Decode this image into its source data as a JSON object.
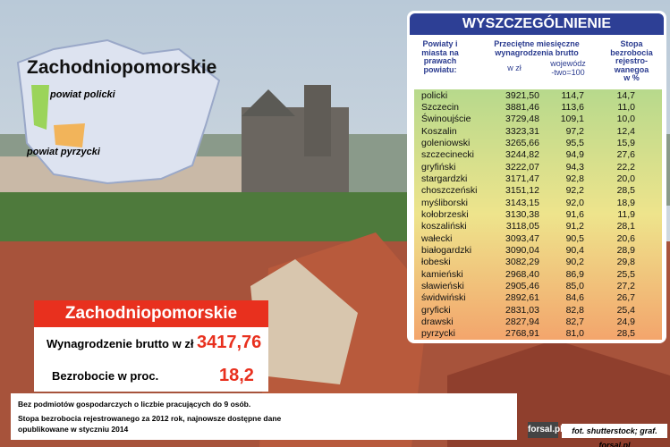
{
  "map": {
    "title": "Zachodniopomorskie",
    "labels": [
      "powiat policki",
      "powiat pyrzycki"
    ]
  },
  "summary": {
    "title": "Zachodniopomorskie",
    "rows": [
      {
        "label": "Wynagrodzenie brutto w zł",
        "value": "3417,76"
      },
      {
        "label": "Bezrobocie w proc.",
        "value": "18,2"
      }
    ],
    "notes": [
      "Bez podmiotów gospodarczych o liczbie pracujących do 9 osób.",
      "Stopa bezrobocia rejestrowanego za 2012 rok, najnowsze dostępne dane opublikowane w styczniu 2014"
    ]
  },
  "table": {
    "title": "WYSZCZEGÓLNIENIE",
    "headers": {
      "region": [
        "Powiaty i",
        "miasta na",
        "prawach",
        "powiatu:"
      ],
      "wage": [
        "Przeciętne miesięczne",
        "wynagrodzenia brutto"
      ],
      "pln": "w zł",
      "index": [
        "wojewódz",
        "-two=100"
      ],
      "rate": [
        "Stopa",
        "bezrobocia",
        "rejestro-",
        "wanegoa",
        "w %"
      ]
    },
    "rows": [
      [
        "policki",
        "3921,50",
        "114,7",
        "14,7"
      ],
      [
        "Szczecin",
        "3881,46",
        "113,6",
        "11,0"
      ],
      [
        "Świnoujście",
        "3729,48",
        "109,1",
        "10,0"
      ],
      [
        "Koszalin",
        "3323,31",
        "97,2",
        "12,4"
      ],
      [
        "goleniowski",
        "3265,66",
        "95,5",
        "15,9"
      ],
      [
        "szczecinecki",
        "3244,82",
        "94,9",
        "27,6"
      ],
      [
        "gryfiński",
        "3222,07",
        "94,3",
        "22,2"
      ],
      [
        "stargardzki",
        "3171,47",
        "92,8",
        "20,0"
      ],
      [
        "choszczeński",
        "3151,12",
        "92,2",
        "28,5"
      ],
      [
        "myśliborski",
        "3143,15",
        "92,0",
        "18,9"
      ],
      [
        "kołobrzeski",
        "3130,38",
        "91,6",
        "11,9"
      ],
      [
        "koszaliński",
        "3118,05",
        "91,2",
        "28,1"
      ],
      [
        "wałecki",
        "3093,47",
        "90,5",
        "20,6"
      ],
      [
        "białogardzki",
        "3090,04",
        "90,4",
        "28,9"
      ],
      [
        "łobeski",
        "3082,29",
        "90,2",
        "29,8"
      ],
      [
        "kamieński",
        "2968,40",
        "86,9",
        "25,5"
      ],
      [
        "sławieński",
        "2905,46",
        "85,0",
        "27,2"
      ],
      [
        "świdwiński",
        "2892,61",
        "84,6",
        "26,7"
      ],
      [
        "gryficki",
        "2831,03",
        "82,8",
        "25,4"
      ],
      [
        "drawski",
        "2827,94",
        "82,7",
        "24,9"
      ],
      [
        "pyrzycki",
        "2768,91",
        "81,0",
        "28,5"
      ]
    ]
  },
  "credits": {
    "logo": "forsal.pl",
    "source": "fot. shutterstock; graf. forsal.pl"
  }
}
